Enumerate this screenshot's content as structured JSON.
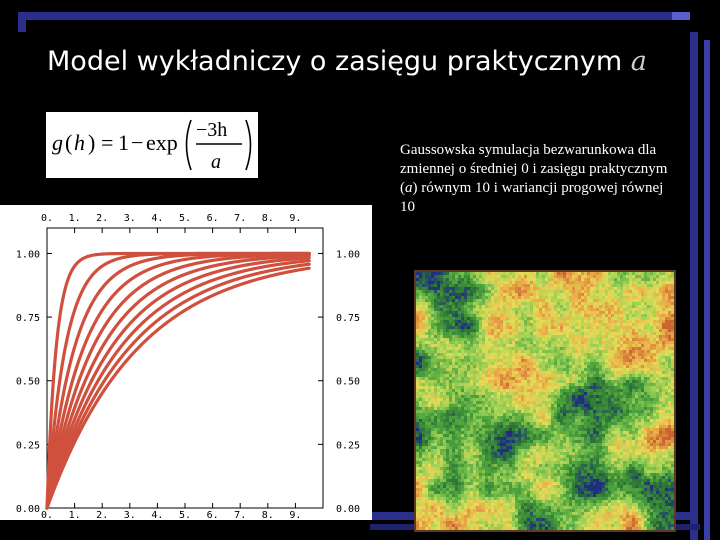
{
  "slide": {
    "title_text": "Model wykładniczy o zasięgu praktycznym",
    "title_var": "a",
    "description_parts": [
      "Gaussowska symulacja bezwarunkowa dla zmiennej o średniej 0 i zasięgu praktycznym (",
      "a",
      ") równym 10 i wariancji progowej równej 10"
    ],
    "formula": {
      "lhs": "g",
      "arg": "h",
      "one": "1",
      "minus": "−",
      "exp": "exp",
      "numerator": "−3h",
      "denominator": "a"
    }
  },
  "colors": {
    "background": "#000000",
    "frame": "#2a2f8c",
    "curve": "#d0503e",
    "chart_bg": "#ffffff",
    "map_green": "#3f9a3a",
    "map_yellow": "#e8d850",
    "map_orange": "#d07a30",
    "map_blue": "#2a3a8c"
  },
  "chart_data": {
    "type": "line",
    "title": "",
    "xlabel": "",
    "ylabel": "",
    "xlim": [
      0,
      10
    ],
    "ylim": [
      0,
      1.1
    ],
    "x_ticks": [
      "0.",
      "1.",
      "2.",
      "3.",
      "4.",
      "5.",
      "6.",
      "7.",
      "8.",
      "9."
    ],
    "y_ticks": [
      "0.00",
      "0.25",
      "0.50",
      "0.75",
      "1.00"
    ],
    "function": "g(h) = 1 - exp(-3h/a)",
    "series": [
      {
        "a": 1
      },
      {
        "a": 2
      },
      {
        "a": 3
      },
      {
        "a": 4
      },
      {
        "a": 5
      },
      {
        "a": 6
      },
      {
        "a": 7
      },
      {
        "a": 8
      },
      {
        "a": 9
      },
      {
        "a": 10
      }
    ]
  },
  "simulation_map": {
    "palette_stops": [
      "#1e2f80",
      "#2f7a35",
      "#4fa53f",
      "#9bcf55",
      "#e6dc58",
      "#e8a245",
      "#c8642e"
    ]
  }
}
